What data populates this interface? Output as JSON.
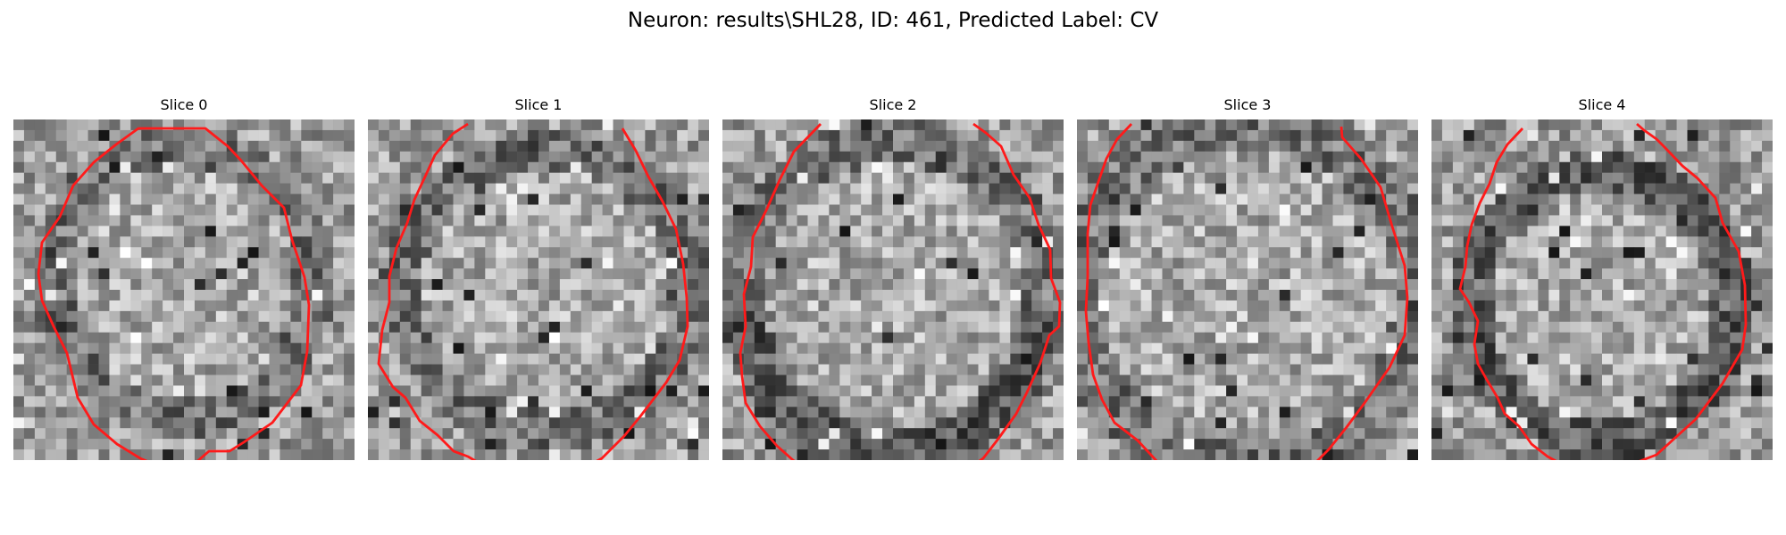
{
  "figure": {
    "title": "Neuron: results\\SHL28, ID: 461, Predicted Label: CV"
  },
  "colors": {
    "contour": "#ff1a1a",
    "background": "#ffffff"
  },
  "panels": [
    {
      "title": "Slice 0",
      "image_style": "grayscale-noise",
      "contour_color": "red"
    },
    {
      "title": "Slice 1",
      "image_style": "grayscale-noise",
      "contour_color": "red"
    },
    {
      "title": "Slice 2",
      "image_style": "grayscale-noise",
      "contour_color": "red"
    },
    {
      "title": "Slice 3",
      "image_style": "grayscale-noise",
      "contour_color": "red"
    },
    {
      "title": "Slice 4",
      "image_style": "grayscale-noise",
      "contour_color": "red"
    }
  ]
}
